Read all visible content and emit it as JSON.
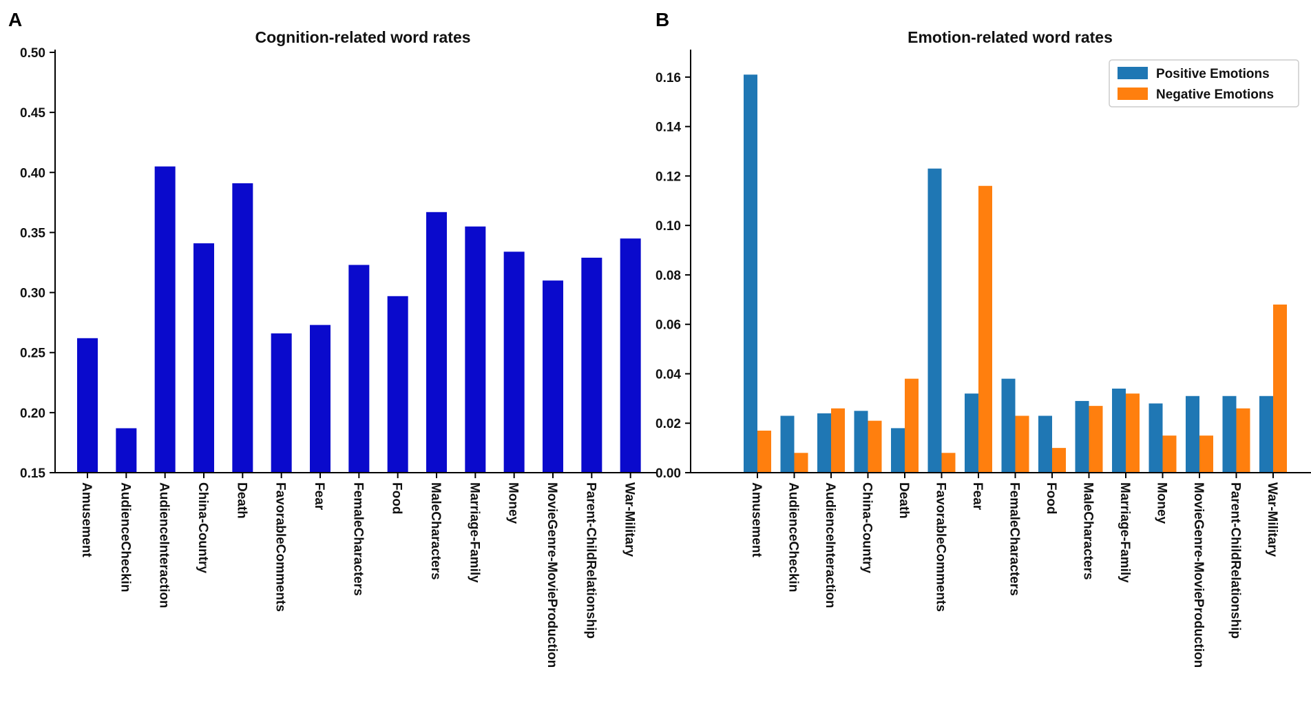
{
  "panels": {
    "left_label": "A",
    "right_label": "B"
  },
  "colors": {
    "cognition": "#0a0acc",
    "positive": "#1f77b4",
    "negative": "#ff7f0e",
    "axis": "#000000"
  },
  "chart_data": [
    {
      "type": "bar",
      "title": "Cognition-related word rates",
      "categories": [
        "Amusement",
        "AudienceCheckin",
        "AudienceInteraction",
        "China-Country",
        "Death",
        "FavorableComments",
        "Fear",
        "FemaleCharacters",
        "Food",
        "MaleCharacters",
        "Marriage-Family",
        "Money",
        "MovieGenre-MovieProduction",
        "Parent-ChildRelationship",
        "War-Military"
      ],
      "values": [
        0.262,
        0.187,
        0.405,
        0.341,
        0.391,
        0.266,
        0.273,
        0.323,
        0.297,
        0.367,
        0.355,
        0.334,
        0.31,
        0.329,
        0.345
      ],
      "xlabel": "",
      "ylabel": "",
      "ylim": [
        0.15,
        0.5
      ],
      "yticks": [
        0.15,
        0.2,
        0.25,
        0.3,
        0.35,
        0.4,
        0.45,
        0.5
      ],
      "ytick_labels": [
        "0.15",
        "0.20",
        "0.25",
        "0.30",
        "0.35",
        "0.40",
        "0.45",
        "0.50"
      ],
      "grid": false
    },
    {
      "type": "bar",
      "title": "Emotion-related word rates",
      "categories": [
        "Amusement",
        "AudienceCheckin",
        "AudienceInteraction",
        "China-Country",
        "Death",
        "FavorableComments",
        "Fear",
        "FemaleCharacters",
        "Food",
        "MaleCharacters",
        "Marriage-Family",
        "Money",
        "MovieGenre-MovieProduction",
        "Parent-ChildRelationship",
        "War-Military"
      ],
      "series": [
        {
          "name": "Positive Emotions",
          "values": [
            0.161,
            0.023,
            0.024,
            0.025,
            0.018,
            0.123,
            0.032,
            0.038,
            0.023,
            0.029,
            0.034,
            0.028,
            0.031,
            0.031,
            0.031
          ]
        },
        {
          "name": "Negative Emotions",
          "values": [
            0.017,
            0.008,
            0.026,
            0.021,
            0.038,
            0.008,
            0.116,
            0.023,
            0.01,
            0.027,
            0.032,
            0.015,
            0.015,
            0.026,
            0.068
          ]
        }
      ],
      "xlabel": "",
      "ylabel": "",
      "ylim": [
        0.0,
        0.17
      ],
      "yticks": [
        0.0,
        0.02,
        0.04,
        0.06,
        0.08,
        0.1,
        0.12,
        0.14,
        0.16
      ],
      "ytick_labels": [
        "0.00",
        "0.02",
        "0.04",
        "0.06",
        "0.08",
        "0.10",
        "0.12",
        "0.14",
        "0.16"
      ],
      "legend": "top-right",
      "grid": false
    }
  ]
}
